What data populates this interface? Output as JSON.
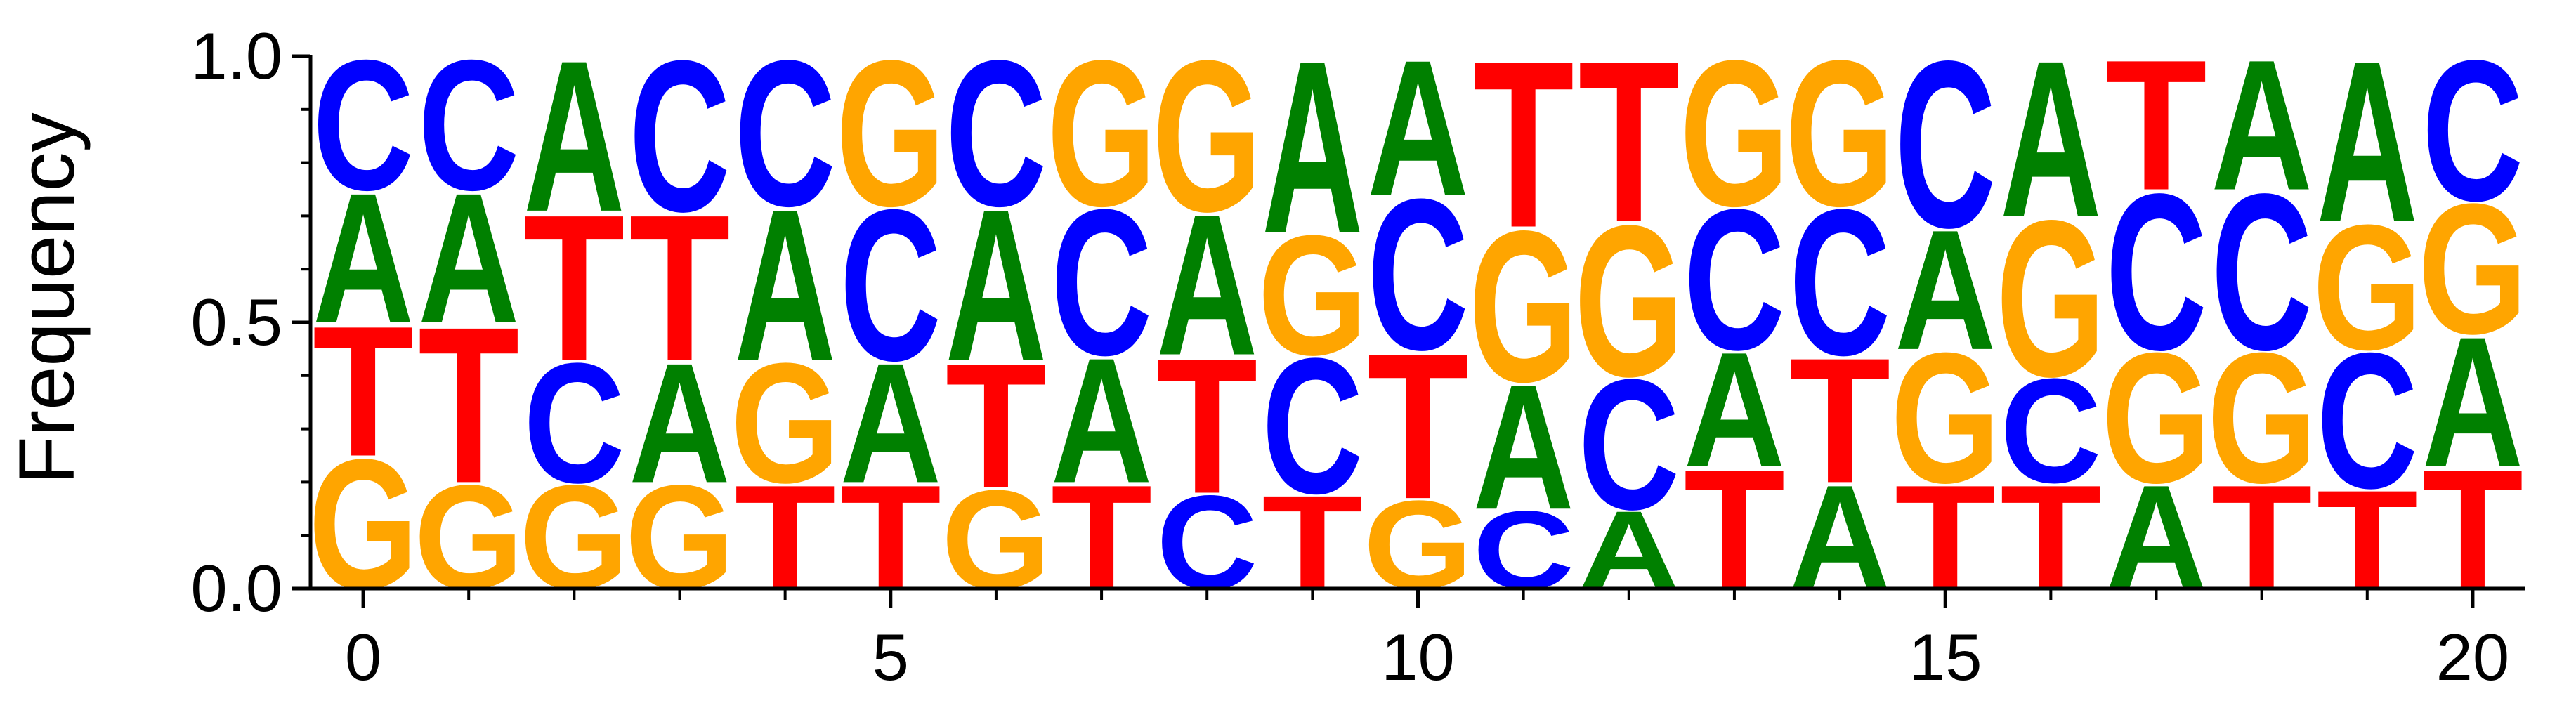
{
  "chart_data": {
    "type": "sequence-logo",
    "title": "",
    "xlabel": "",
    "ylabel": "Frequency",
    "xlim": [
      -0.5,
      20.5
    ],
    "ylim": [
      0,
      1
    ],
    "x_ticks": [
      0,
      5,
      10,
      15,
      20
    ],
    "x_tick_labels": [
      "0",
      "5",
      "10",
      "15",
      "20"
    ],
    "y_ticks": [
      0,
      0.5,
      1
    ],
    "y_tick_labels": [
      "0.0",
      "0.5",
      "1.0"
    ],
    "colors": {
      "A": "#008000",
      "C": "#0000ff",
      "G": "#ffa500",
      "T": "#ff0000"
    },
    "positions": [
      {
        "pos": 0,
        "stack": [
          [
            "G",
            0.25
          ],
          [
            "T",
            0.25
          ],
          [
            "A",
            0.25
          ],
          [
            "C",
            0.25
          ]
        ]
      },
      {
        "pos": 1,
        "stack": [
          [
            "G",
            0.2
          ],
          [
            "T",
            0.3
          ],
          [
            "A",
            0.25
          ],
          [
            "C",
            0.25
          ]
        ]
      },
      {
        "pos": 2,
        "stack": [
          [
            "G",
            0.2
          ],
          [
            "C",
            0.23
          ],
          [
            "T",
            0.28
          ],
          [
            "A",
            0.29
          ]
        ]
      },
      {
        "pos": 3,
        "stack": [
          [
            "G",
            0.2
          ],
          [
            "A",
            0.23
          ],
          [
            "T",
            0.28
          ],
          [
            "C",
            0.29
          ]
        ]
      },
      {
        "pos": 4,
        "stack": [
          [
            "T",
            0.2
          ],
          [
            "G",
            0.23
          ],
          [
            "A",
            0.29
          ],
          [
            "C",
            0.28
          ]
        ]
      },
      {
        "pos": 5,
        "stack": [
          [
            "T",
            0.2
          ],
          [
            "A",
            0.23
          ],
          [
            "C",
            0.29
          ],
          [
            "G",
            0.28
          ]
        ]
      },
      {
        "pos": 6,
        "stack": [
          [
            "G",
            0.19
          ],
          [
            "T",
            0.24
          ],
          [
            "A",
            0.29
          ],
          [
            "C",
            0.28
          ]
        ]
      },
      {
        "pos": 7,
        "stack": [
          [
            "T",
            0.2
          ],
          [
            "A",
            0.24
          ],
          [
            "C",
            0.28
          ],
          [
            "G",
            0.28
          ]
        ]
      },
      {
        "pos": 8,
        "stack": [
          [
            "C",
            0.18
          ],
          [
            "T",
            0.26
          ],
          [
            "A",
            0.27
          ],
          [
            "G",
            0.29
          ]
        ]
      },
      {
        "pos": 9,
        "stack": [
          [
            "T",
            0.18
          ],
          [
            "C",
            0.26
          ],
          [
            "G",
            0.23
          ],
          [
            "A",
            0.33
          ]
        ]
      },
      {
        "pos": 10,
        "stack": [
          [
            "G",
            0.17
          ],
          [
            "T",
            0.28
          ],
          [
            "C",
            0.29
          ],
          [
            "A",
            0.26
          ]
        ]
      },
      {
        "pos": 11,
        "stack": [
          [
            "C",
            0.15
          ],
          [
            "A",
            0.24
          ],
          [
            "G",
            0.29
          ],
          [
            "T",
            0.32
          ]
        ]
      },
      {
        "pos": 12,
        "stack": [
          [
            "A",
            0.15
          ],
          [
            "C",
            0.25
          ],
          [
            "G",
            0.29
          ],
          [
            "T",
            0.31
          ]
        ]
      },
      {
        "pos": 13,
        "stack": [
          [
            "T",
            0.23
          ],
          [
            "A",
            0.22
          ],
          [
            "C",
            0.27
          ],
          [
            "G",
            0.28
          ]
        ]
      },
      {
        "pos": 14,
        "stack": [
          [
            "A",
            0.2
          ],
          [
            "T",
            0.24
          ],
          [
            "C",
            0.28
          ],
          [
            "G",
            0.28
          ]
        ]
      },
      {
        "pos": 15,
        "stack": [
          [
            "T",
            0.2
          ],
          [
            "G",
            0.25
          ],
          [
            "A",
            0.23
          ],
          [
            "C",
            0.32
          ]
        ]
      },
      {
        "pos": 16,
        "stack": [
          [
            "T",
            0.2
          ],
          [
            "C",
            0.2
          ],
          [
            "G",
            0.3
          ],
          [
            "A",
            0.3
          ]
        ]
      },
      {
        "pos": 17,
        "stack": [
          [
            "A",
            0.2
          ],
          [
            "G",
            0.25
          ],
          [
            "C",
            0.3
          ],
          [
            "T",
            0.25
          ]
        ]
      },
      {
        "pos": 18,
        "stack": [
          [
            "T",
            0.2
          ],
          [
            "G",
            0.25
          ],
          [
            "C",
            0.3
          ],
          [
            "A",
            0.25
          ]
        ]
      },
      {
        "pos": 19,
        "stack": [
          [
            "T",
            0.19
          ],
          [
            "C",
            0.26
          ],
          [
            "G",
            0.24
          ],
          [
            "A",
            0.31
          ]
        ]
      },
      {
        "pos": 20,
        "stack": [
          [
            "T",
            0.23
          ],
          [
            "A",
            0.25
          ],
          [
            "G",
            0.25
          ],
          [
            "C",
            0.27
          ]
        ]
      }
    ]
  }
}
